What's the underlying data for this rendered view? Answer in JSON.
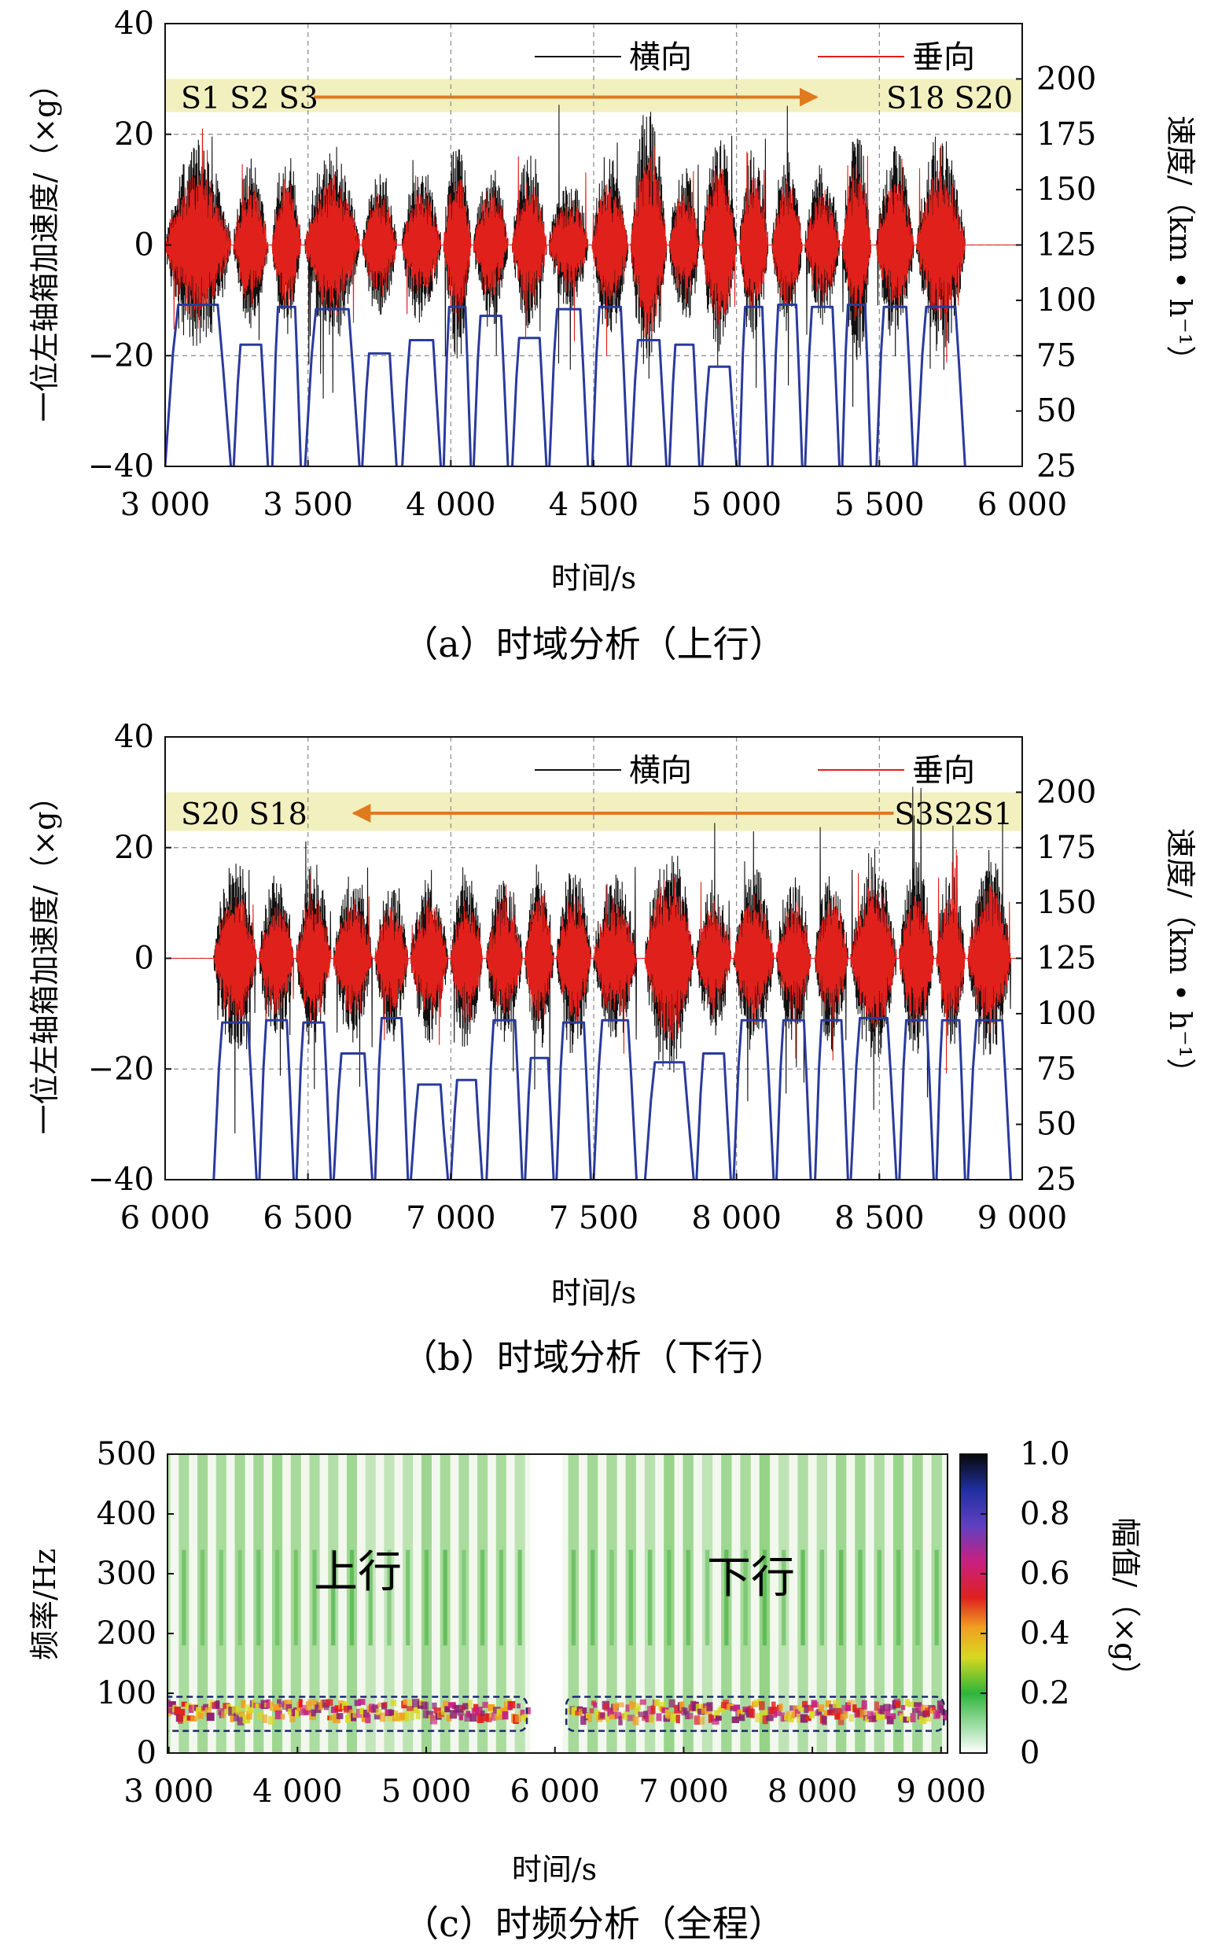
{
  "chart_data": [
    {
      "type": "line",
      "panel": "a",
      "caption": "（a）时域分析（上行）",
      "xlabel": "时间/s",
      "ylabel": "一位左轴箱加速度/（×g）",
      "y2label": "速度/（km • h⁻¹）",
      "xlim": [
        3000,
        6000
      ],
      "ylim": [
        -40,
        40
      ],
      "y2lim": [
        25,
        225
      ],
      "xticks": [
        3000,
        3500,
        4000,
        4500,
        5000,
        5500,
        6000
      ],
      "xtick_labels": [
        "3 000",
        "3 500",
        "4 000",
        "4 500",
        "5 000",
        "5 500",
        "6 000"
      ],
      "yticks": [
        -40,
        -20,
        0,
        20,
        40
      ],
      "y2ticks": [
        25,
        50,
        75,
        100,
        125,
        150,
        175,
        200
      ],
      "grid": "dashed",
      "legend_position": "top-right",
      "series": [
        {
          "name": "横向",
          "color": "#111111",
          "kind": "acceleration"
        },
        {
          "name": "垂向",
          "color": "#e0201b",
          "kind": "acceleration"
        },
        {
          "name": "",
          "color": "#2a3a9c",
          "kind": "speed"
        }
      ],
      "station_band": {
        "labels_left": "S1 S2 S3",
        "labels_right": "S18   S20",
        "direction": "right",
        "band_y": [
          24,
          30
        ],
        "arrow_x": [
          3520,
          5280
        ]
      },
      "sections": [
        [
          3000,
          3230
        ],
        [
          3240,
          3360
        ],
        [
          3375,
          3475
        ],
        [
          3490,
          3680
        ],
        [
          3690,
          3810
        ],
        [
          3830,
          3965
        ],
        [
          3975,
          4070
        ],
        [
          4080,
          4200
        ],
        [
          4215,
          4335
        ],
        [
          4345,
          4480
        ],
        [
          4495,
          4620
        ],
        [
          4630,
          4755
        ],
        [
          4765,
          4870
        ],
        [
          4880,
          5000
        ],
        [
          5010,
          5110
        ],
        [
          5125,
          5230
        ],
        [
          5240,
          5360
        ],
        [
          5370,
          5470
        ],
        [
          5490,
          5620
        ],
        [
          5630,
          5800
        ]
      ],
      "section_speeds": [
        98,
        80,
        97,
        96,
        76,
        82,
        97,
        93,
        83,
        96,
        97,
        82,
        80,
        70,
        97,
        98,
        97,
        98,
        97,
        97
      ],
      "peaks": [
        16,
        13,
        14,
        15,
        11,
        12,
        17,
        12,
        14,
        10,
        14,
        21,
        13,
        18,
        15,
        14,
        12,
        18,
        15,
        17
      ]
    },
    {
      "type": "line",
      "panel": "b",
      "caption": "（b）时域分析（下行）",
      "xlabel": "时间/s",
      "ylabel": "一位左轴箱加速度/（×g）",
      "y2label": "速度/（km • h⁻¹）",
      "xlim": [
        6000,
        9000
      ],
      "ylim": [
        -40,
        40
      ],
      "y2lim": [
        25,
        225
      ],
      "xticks": [
        6000,
        6500,
        7000,
        7500,
        8000,
        8500,
        9000
      ],
      "xtick_labels": [
        "6 000",
        "6 500",
        "7 000",
        "7 500",
        "8 000",
        "8 500",
        "9 000"
      ],
      "yticks": [
        -40,
        -20,
        0,
        20,
        40
      ],
      "y2ticks": [
        25,
        50,
        75,
        100,
        125,
        150,
        175,
        200
      ],
      "grid": "dashed",
      "legend_position": "top-right",
      "series": [
        {
          "name": "横向",
          "color": "#111111",
          "kind": "acceleration"
        },
        {
          "name": "垂向",
          "color": "#e0201b",
          "kind": "acceleration"
        },
        {
          "name": "",
          "color": "#2a3a9c",
          "kind": "speed"
        }
      ],
      "station_band": {
        "labels_left": "S20   S18",
        "labels_right": "S3S2S1",
        "direction": "left",
        "band_y": [
          23,
          30
        ],
        "arrow_x": [
          6660,
          8550
        ]
      },
      "sections": [
        [
          6170,
          6320
        ],
        [
          6330,
          6450
        ],
        [
          6460,
          6580
        ],
        [
          6590,
          6725
        ],
        [
          6735,
          6850
        ],
        [
          6860,
          6990
        ],
        [
          7000,
          7110
        ],
        [
          7125,
          7250
        ],
        [
          7260,
          7360
        ],
        [
          7370,
          7490
        ],
        [
          7500,
          7650
        ],
        [
          7680,
          7850
        ],
        [
          7860,
          7980
        ],
        [
          7990,
          8130
        ],
        [
          8140,
          8260
        ],
        [
          8275,
          8390
        ],
        [
          8400,
          8560
        ],
        [
          8570,
          8690
        ],
        [
          8700,
          8800
        ],
        [
          8810,
          8960
        ]
      ],
      "section_speeds": [
        96,
        97,
        96,
        82,
        98,
        68,
        70,
        97,
        80,
        96,
        97,
        78,
        82,
        97,
        97,
        97,
        98,
        97,
        97,
        97
      ],
      "peaks": [
        15,
        13,
        14,
        13,
        12,
        13,
        14,
        13,
        14,
        15,
        13,
        18,
        12,
        14,
        13,
        14,
        16,
        15,
        14,
        16
      ]
    },
    {
      "type": "heatmap",
      "panel": "c",
      "caption": "（c）时频分析（全程）",
      "xlabel": "时间/s",
      "ylabel": "频率/Hz",
      "colorbar_label": "幅值/（×g）",
      "xlim": [
        2990,
        9050
      ],
      "ylim": [
        0,
        500
      ],
      "xticks": [
        3000,
        4000,
        5000,
        6000,
        7000,
        8000,
        9000
      ],
      "xtick_labels": [
        "3 000",
        "4 000",
        "5 000",
        "6 000",
        "7 000",
        "8 000",
        "9 000"
      ],
      "yticks": [
        0,
        100,
        200,
        300,
        400,
        500
      ],
      "colorbar_range": [
        0,
        1.0
      ],
      "colorbar_ticks": [
        0,
        0.2,
        0.4,
        0.6,
        0.8,
        1.0
      ],
      "colorbar_tick_labels": [
        "0",
        "0.2",
        "0.4",
        "0.6",
        "0.8",
        "1.0"
      ],
      "annotations": [
        "上行",
        "下行"
      ],
      "highlight_band_hz": [
        37,
        94
      ],
      "highlight_ranges_s": [
        [
          2900,
          5800
        ],
        [
          6070,
          9040
        ]
      ],
      "gap_s": [
        5810,
        6060
      ]
    }
  ]
}
